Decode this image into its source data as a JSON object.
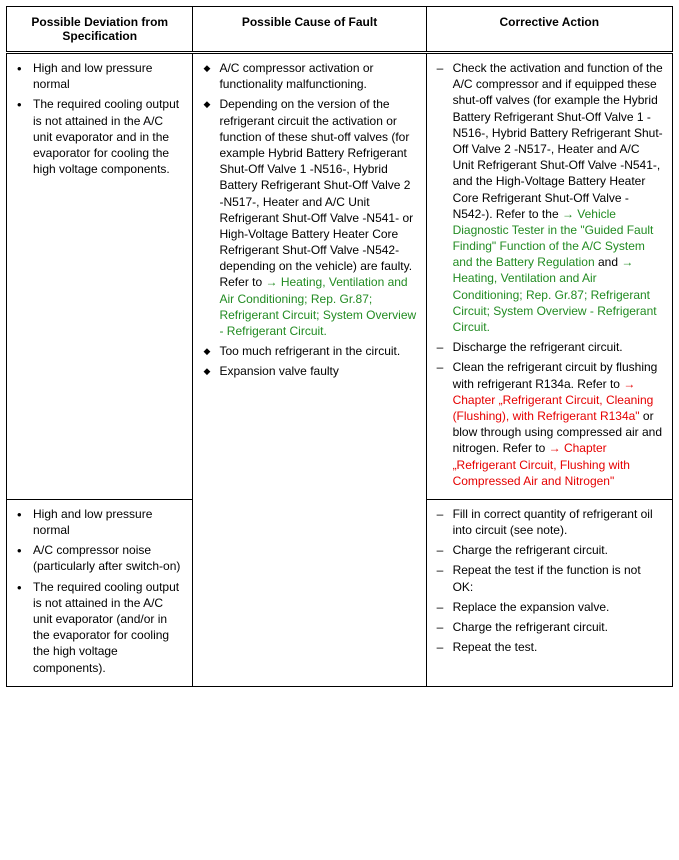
{
  "headers": {
    "col1": "Possible Deviation from Specification",
    "col2": "Possible Cause of Fault",
    "col3": "Corrective Action"
  },
  "row1": {
    "deviation": [
      "High and low pressure normal",
      "The required cooling output is not attained in the A/C unit evaporator and in the evaporator for cooling the high voltage components."
    ],
    "cause": {
      "i0": "A/C compressor activation or functionality malfunctioning.",
      "i1_pre": "Depending on the version of the refrigerant circuit the activation or function of these shut-off valves (for example Hybrid Battery Refrigerant Shut-Off Valve 1 -N516-, Hybrid Battery Refrigerant Shut-Off Valve 2 -N517-, Heater and A/C Unit Refrigerant Shut-Off Valve -N541- or High-Voltage Battery Heater Core Refrigerant Shut-Off Valve -N542- depending on the vehicle) are faulty. Refer to ",
      "i1_link": "→ Heating, Ventilation and Air Conditioning; Rep. Gr.87; Refrigerant Circuit; System Overview - Refrigerant Circuit.",
      "i2": "Too much refrigerant in the circuit.",
      "i3": "Expansion valve faulty"
    },
    "action": {
      "a0_pre": "Check the activation and function of the A/C compressor and if equipped these shut-off valves (for example the Hybrid Battery Refrigerant Shut-Off Valve 1 -N516-, Hybrid Battery Refrigerant Shut-Off Valve 2 -N517-, Heater and A/C Unit Refrigerant Shut-Off Valve -N541-, and the High-Voltage Battery Heater Core Refrigerant Shut-Off Valve -N542-). Refer to the ",
      "a0_link1": "→ Vehicle Diagnostic Tester in the \"Guided Fault Finding\" Function of the A/C System and the Battery Regulation",
      "a0_mid": " and ",
      "a0_link2": "→ Heating, Ventilation and Air Conditioning; Rep. Gr.87; Refrigerant Circuit; System Overview - Refrigerant Circuit.",
      "a1": "Discharge the refrigerant circuit.",
      "a2_pre": "Clean the refrigerant circuit by flushing with refrigerant R134a. Refer to ",
      "a2_link1": "→ Chapter „Refrigerant Circuit, Cleaning (Flushing), with Refrigerant R134a\"",
      "a2_mid": " or blow through using compressed air and nitrogen. Refer to ",
      "a2_link2": "→ Chapter „Refrigerant Circuit, Flushing with Compressed Air and Nitrogen\""
    }
  },
  "row2": {
    "deviation": [
      "High and low pressure normal",
      "A/C compressor noise (particularly after switch-on)",
      "The required cooling output is not attained in the A/C unit evaporator (and/or in the evaporator for cooling the high voltage components)."
    ],
    "action": [
      "Fill in correct quantity of refrigerant oil into circuit (see note).",
      "Charge the refrigerant circuit.",
      "Repeat the test if the function is not OK:",
      "Replace the expansion valve.",
      "Charge the refrigerant circuit.",
      "Repeat the test."
    ]
  },
  "colors": {
    "link_green": "#228B22",
    "link_red": "#e60000",
    "border": "#000000",
    "text": "#000000",
    "background": "#ffffff"
  }
}
